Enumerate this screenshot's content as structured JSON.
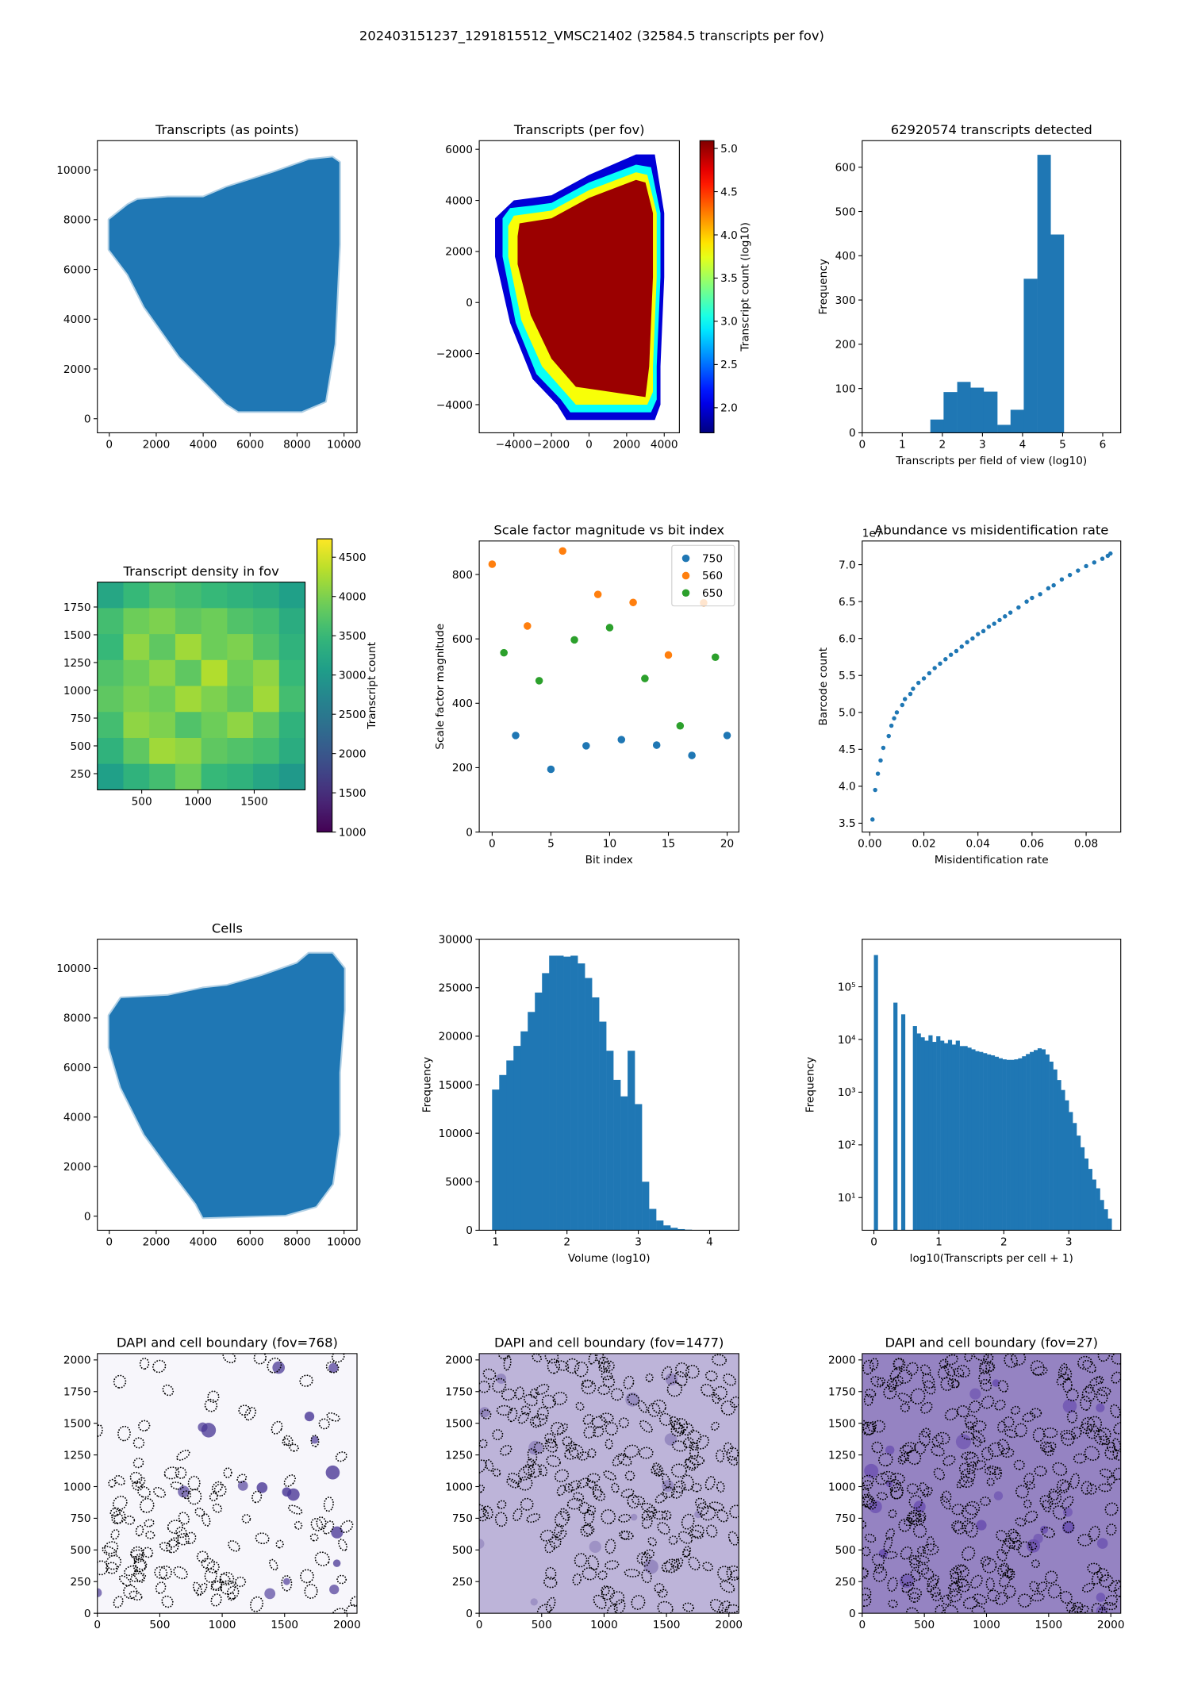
{
  "suptitle": "202403151237_1291815512_VMSC21402 (32584.5 transcripts per fov)",
  "chart_data": [
    {
      "type": "region",
      "title": "Transcripts (as points)",
      "color": "#1f77b4",
      "xlim": [
        -507,
        10553
      ],
      "ylim": [
        -565,
        11174
      ],
      "xticks": [
        0,
        2000,
        4000,
        6000,
        8000,
        10000
      ],
      "yticks": [
        0,
        2000,
        4000,
        6000,
        8000,
        10000
      ],
      "regions": [
        {
          "x": [
            0,
            0,
            800,
            1200,
            2500,
            4000,
            5000,
            7000,
            8500,
            9500,
            9800,
            9800,
            9600,
            9200,
            8200,
            5500,
            5000,
            3000,
            1500,
            800
          ],
          "y": [
            6800,
            8000,
            8600,
            8800,
            8900,
            8900,
            9300,
            9900,
            10400,
            10500,
            10300,
            7000,
            3000,
            700,
            300,
            300,
            600,
            2500,
            4500,
            5800
          ]
        }
      ]
    },
    {
      "type": "region",
      "title": "Transcripts (per fov)",
      "xlim": [
        -5841,
        4806
      ],
      "ylim": [
        -5102,
        6339
      ],
      "xticks": [
        {
          "value": -4000,
          "label": "−4000"
        },
        {
          "value": -2000,
          "label": "−2000"
        },
        0,
        2000,
        4000
      ],
      "yticks": [
        {
          "value": -4000,
          "label": "−4000"
        },
        {
          "value": -2000,
          "label": "−2000"
        },
        0,
        2000,
        4000,
        6000
      ],
      "colorbar": {
        "label": "Transcript count (log10)",
        "cmap": "jet",
        "clim": [
          1.71,
          5.09
        ],
        "ticks": [
          {
            "value": 2,
            "label": "2.0"
          },
          2.5,
          {
            "value": 3,
            "label": "3.0"
          },
          3.5,
          {
            "value": 4,
            "label": "4.0"
          },
          4.5,
          {
            "value": 5,
            "label": "5.0"
          }
        ]
      },
      "regions": [
        {
          "value": 2.0,
          "x": [
            -5000,
            -5000,
            -4200,
            -3000,
            -1700,
            -1200,
            3500,
            3800,
            3800,
            4000,
            4000,
            3500,
            2500,
            0,
            -2000,
            -3000,
            -4000
          ],
          "y": [
            3300,
            1800,
            -800,
            -3000,
            -4000,
            -4600,
            -4600,
            -4000,
            -2500,
            1000,
            3500,
            5800,
            5800,
            5000,
            4200,
            4100,
            4000
          ]
        },
        {
          "value": 3.0,
          "x": [
            -4600,
            -4600,
            -3900,
            -2800,
            -1500,
            -1000,
            3300,
            3600,
            3600,
            3800,
            3800,
            3300,
            2500,
            0,
            -2000,
            -3000,
            -4200
          ],
          "y": [
            3300,
            1800,
            -800,
            -2800,
            -3800,
            -4300,
            -4300,
            -3800,
            -2500,
            1000,
            3500,
            5300,
            5400,
            4700,
            3900,
            3800,
            3700
          ]
        },
        {
          "value": 3.8,
          "x": [
            -4300,
            -4300,
            -3600,
            -2500,
            -1300,
            -700,
            3100,
            3400,
            3400,
            3600,
            3600,
            3100,
            2500,
            0,
            -2000,
            -3000,
            -4000
          ],
          "y": [
            3000,
            1800,
            -700,
            -2500,
            -3500,
            -4000,
            -4000,
            -3500,
            -2500,
            1000,
            3500,
            5000,
            5100,
            4400,
            3600,
            3500,
            3400
          ]
        },
        {
          "value": 5.0,
          "x": [
            -3800,
            -3800,
            -3100,
            -2000,
            -700,
            3000,
            3200,
            3400,
            3400,
            3000,
            2500,
            0,
            -2000,
            -3700
          ],
          "y": [
            2600,
            1500,
            -500,
            -2200,
            -3300,
            -3700,
            -2500,
            1000,
            3500,
            4700,
            4800,
            4100,
            3300,
            3100
          ]
        }
      ]
    },
    {
      "type": "histogram",
      "title": "62920574 transcripts detected",
      "color": "#1f77b4",
      "xlabel": "Transcripts per field of view (log10)",
      "ylabel": "Frequency",
      "xlim": [
        0,
        6.45
      ],
      "ylim": [
        0,
        660
      ],
      "xticks": [
        0,
        1,
        2,
        3,
        4,
        5,
        6
      ],
      "yticks": [
        0,
        100,
        200,
        300,
        400,
        500,
        600
      ],
      "bins": [
        1.7,
        2.03,
        2.37,
        2.7,
        3.03,
        3.37,
        3.7,
        4.03,
        4.37,
        4.7,
        5.03
      ],
      "values": [
        30,
        92,
        115,
        102,
        93,
        18,
        52,
        348,
        628,
        448
      ]
    },
    {
      "type": "heatmap",
      "title": "Transcript density in fov",
      "cmap": "viridis",
      "xlim": [
        106,
        1952
      ],
      "ylim": [
        104,
        1974
      ],
      "xticks": [
        500,
        1000,
        1500
      ],
      "yticks": [
        250,
        500,
        750,
        1000,
        1250,
        1500,
        1750
      ],
      "colorbar": {
        "label": "Transcript count",
        "cmap": "viridis",
        "clim": [
          1000,
          4734
        ],
        "ticks": [
          1000,
          1500,
          2000,
          2500,
          3000,
          3500,
          4000,
          4500
        ]
      },
      "z": [
        [
          3200,
          3500,
          3700,
          3600,
          3500,
          3400,
          3300,
          3100
        ],
        [
          3600,
          3900,
          4000,
          3800,
          3900,
          3700,
          3600,
          3300
        ],
        [
          3500,
          4100,
          3800,
          4200,
          3900,
          4000,
          3700,
          3400
        ],
        [
          3700,
          3900,
          4100,
          3800,
          4300,
          3900,
          4100,
          3500
        ],
        [
          3800,
          4000,
          3900,
          4200,
          4000,
          3800,
          4200,
          3600
        ],
        [
          3600,
          4100,
          4000,
          3700,
          3900,
          4100,
          3800,
          3400
        ],
        [
          3400,
          3800,
          4200,
          4100,
          3800,
          3700,
          3600,
          3300
        ],
        [
          3100,
          3400,
          3600,
          3900,
          3500,
          3400,
          3200,
          3000
        ]
      ]
    },
    {
      "type": "scatter",
      "title": "Scale factor magnitude vs bit index",
      "xlabel": "Bit index",
      "ylabel": "Scale factor magnitude",
      "xlim": [
        -1.1,
        21
      ],
      "ylim": [
        0,
        904
      ],
      "xticks": [
        0,
        5,
        10,
        15,
        20
      ],
      "yticks": [
        0,
        200,
        400,
        600,
        800
      ],
      "legend": "upper right",
      "series": [
        {
          "name": "750",
          "color": "#1f77b4",
          "x": [
            2,
            5,
            8,
            11,
            14,
            17,
            20
          ],
          "y": [
            300,
            195,
            268,
            287,
            270,
            238,
            300
          ]
        },
        {
          "name": "560",
          "color": "#ff7f0e",
          "x": [
            0,
            3,
            6,
            9,
            12,
            15,
            18
          ],
          "y": [
            832,
            640,
            873,
            738,
            713,
            550,
            712
          ]
        },
        {
          "name": "650",
          "color": "#2ca02c",
          "x": [
            1,
            4,
            7,
            10,
            13,
            16,
            19
          ],
          "y": [
            557,
            470,
            597,
            635,
            477,
            330,
            543
          ]
        }
      ]
    },
    {
      "type": "scatter",
      "title": "Abundance vs misidentification rate",
      "xlabel": "Misidentification rate",
      "ylabel": "Barcode count",
      "offset_label": "1e7",
      "xlim": [
        -0.0028,
        0.0928
      ],
      "ylim": [
        3.38,
        7.32
      ],
      "xticks": [
        {
          "value": 0,
          "label": "0.00"
        },
        {
          "value": 0.02,
          "label": "0.02"
        },
        {
          "value": 0.04,
          "label": "0.04"
        },
        {
          "value": 0.06,
          "label": "0.06"
        },
        {
          "value": 0.08,
          "label": "0.08"
        }
      ],
      "yticks": [
        3.5,
        {
          "value": 4,
          "label": "4.0"
        },
        4.5,
        {
          "value": 5,
          "label": "5.0"
        },
        5.5,
        {
          "value": 6,
          "label": "6.0"
        },
        6.5,
        {
          "value": 7,
          "label": "7.0"
        }
      ],
      "series": [
        {
          "color": "#1f77b4",
          "x": [
            0.001,
            0.002,
            0.003,
            0.004,
            0.005,
            0.007,
            0.008,
            0.009,
            0.01,
            0.012,
            0.013,
            0.015,
            0.016,
            0.018,
            0.02,
            0.022,
            0.024,
            0.026,
            0.028,
            0.03,
            0.032,
            0.034,
            0.036,
            0.038,
            0.04,
            0.042,
            0.044,
            0.046,
            0.048,
            0.05,
            0.052,
            0.055,
            0.058,
            0.06,
            0.063,
            0.066,
            0.068,
            0.071,
            0.074,
            0.077,
            0.08,
            0.083,
            0.086,
            0.088,
            0.089
          ],
          "y": [
            3.55,
            3.95,
            4.17,
            4.35,
            4.52,
            4.68,
            4.82,
            4.92,
            5.0,
            5.1,
            5.18,
            5.25,
            5.32,
            5.4,
            5.46,
            5.53,
            5.6,
            5.66,
            5.72,
            5.78,
            5.83,
            5.89,
            5.95,
            6.0,
            6.06,
            6.1,
            6.16,
            6.2,
            6.25,
            6.3,
            6.35,
            6.42,
            6.5,
            6.55,
            6.6,
            6.68,
            6.72,
            6.8,
            6.86,
            6.92,
            6.98,
            7.03,
            7.08,
            7.12,
            7.15
          ]
        }
      ]
    },
    {
      "type": "region",
      "title": "Cells",
      "color": "#1f77b4",
      "xlim": [
        -507,
        10553
      ],
      "ylim": [
        -568,
        11180
      ],
      "xticks": [
        0,
        2000,
        4000,
        6000,
        8000,
        10000
      ],
      "yticks": [
        0,
        2000,
        4000,
        6000,
        8000,
        10000
      ],
      "regions": [
        {
          "x": [
            0,
            0,
            500,
            2500,
            4000,
            5000,
            6500,
            8000,
            8500,
            9500,
            10000,
            10000,
            9800,
            9800,
            9500,
            8800,
            7500,
            4000,
            3700,
            2500,
            1500,
            500
          ],
          "y": [
            6800,
            8100,
            8800,
            8900,
            9200,
            9300,
            9700,
            10200,
            10600,
            10600,
            10000,
            8300,
            5800,
            3300,
            1300,
            400,
            50,
            -50,
            500,
            2000,
            3300,
            5200
          ]
        }
      ]
    },
    {
      "type": "histogram",
      "color": "#1f77b4",
      "xlabel": "Volume (log10)",
      "ylabel": "Frequency",
      "xlim": [
        0.77,
        4.41
      ],
      "ylim": [
        0,
        30000
      ],
      "xticks": [
        1,
        2,
        3,
        4
      ],
      "yticks": [
        0,
        5000,
        10000,
        15000,
        20000,
        25000,
        30000
      ],
      "bins": [
        0.95,
        1.05,
        1.15,
        1.25,
        1.35,
        1.45,
        1.55,
        1.65,
        1.75,
        1.85,
        1.95,
        2.05,
        2.15,
        2.25,
        2.35,
        2.45,
        2.55,
        2.65,
        2.75,
        2.85,
        2.95,
        3.05,
        3.15,
        3.25,
        3.35,
        3.45,
        3.55,
        3.65,
        3.75,
        3.85,
        3.95,
        4.05,
        4.15
      ],
      "values": [
        14500,
        16000,
        17500,
        19000,
        20500,
        22500,
        24500,
        26500,
        28300,
        28300,
        28200,
        28300,
        27500,
        26000,
        24000,
        21500,
        18500,
        15500,
        13800,
        18500,
        13000,
        5000,
        2200,
        1000,
        500,
        250,
        120,
        60,
        30,
        15,
        8,
        4
      ]
    },
    {
      "type": "histogram",
      "color": "#1f77b4",
      "xlabel": "log10(Transcripts per cell + 1)",
      "ylabel": "Frequency",
      "ylog": true,
      "xlim": [
        -0.18,
        3.8
      ],
      "ylim": [
        2.4,
        800000
      ],
      "xticks": [
        0,
        1,
        2,
        3
      ],
      "yticks": [
        {
          "value": 10,
          "label": "10¹"
        },
        {
          "value": 100,
          "label": "10²"
        },
        {
          "value": 1000,
          "label": "10³"
        },
        {
          "value": 10000,
          "label": "10⁴"
        },
        {
          "value": 100000,
          "label": "10⁵"
        }
      ],
      "bins": [
        0,
        0.06,
        0.12,
        0.18,
        0.24,
        0.3,
        0.36,
        0.42,
        0.48,
        0.54,
        0.6,
        0.66,
        0.72,
        0.78,
        0.84,
        0.9,
        0.96,
        1.02,
        1.08,
        1.14,
        1.2,
        1.26,
        1.32,
        1.38,
        1.44,
        1.5,
        1.56,
        1.62,
        1.68,
        1.74,
        1.8,
        1.86,
        1.92,
        1.98,
        2.04,
        2.1,
        2.16,
        2.22,
        2.28,
        2.34,
        2.4,
        2.46,
        2.52,
        2.58,
        2.64,
        2.7,
        2.76,
        2.82,
        2.88,
        2.94,
        3.0,
        3.06,
        3.12,
        3.18,
        3.24,
        3.3,
        3.36,
        3.42,
        3.48,
        3.54,
        3.6,
        3.66
      ],
      "values": [
        400000,
        0,
        0,
        0,
        0,
        50000,
        0,
        30000,
        0,
        0,
        18000,
        13000,
        11000,
        9500,
        12000,
        9000,
        11500,
        9500,
        8500,
        9800,
        8000,
        9500,
        7500,
        7500,
        7000,
        6500,
        6000,
        5800,
        5500,
        5200,
        5000,
        4700,
        4400,
        4200,
        4100,
        4100,
        4200,
        4400,
        4800,
        5300,
        5800,
        6300,
        6800,
        6500,
        5200,
        3800,
        2700,
        1700,
        1100,
        700,
        420,
        260,
        150,
        90,
        55,
        35,
        22,
        15,
        9,
        6,
        4
      ]
    },
    {
      "type": "image",
      "title": "DAPI and cell boundary (fov=768)",
      "background": "#f7f6fb",
      "xlim": [
        0,
        2080
      ],
      "ylim": [
        0,
        2050
      ],
      "xticks": [
        0,
        500,
        1000,
        1500,
        2000
      ],
      "yticks": [
        0,
        250,
        500,
        750,
        1000,
        1250,
        1500,
        1750,
        2000
      ]
    },
    {
      "type": "image",
      "title": "DAPI and cell boundary (fov=1477)",
      "background": "#bdb4d9",
      "xlim": [
        0,
        2080
      ],
      "ylim": [
        0,
        2050
      ],
      "xticks": [
        0,
        500,
        1000,
        1500,
        2000
      ],
      "yticks": [
        0,
        250,
        500,
        750,
        1000,
        1250,
        1500,
        1750,
        2000
      ]
    },
    {
      "type": "image",
      "title": "DAPI and cell boundary (fov=27)",
      "background": "#9583c2",
      "xlim": [
        0,
        2080
      ],
      "ylim": [
        0,
        2050
      ],
      "xticks": [
        0,
        500,
        1000,
        1500,
        2000
      ],
      "yticks": [
        0,
        250,
        500,
        750,
        1000,
        1250,
        1500,
        1750,
        2000
      ]
    }
  ]
}
